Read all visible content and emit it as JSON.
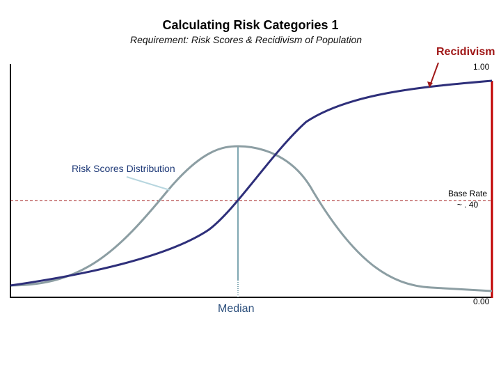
{
  "title": "Calculating Risk Categories 1",
  "subtitle": "Requirement: Risk Scores & Recidivism of Population",
  "recidivism_label": "Recidivism",
  "axis_top_value": "1.00",
  "axis_bottom_value": "0.00",
  "distribution_label": "Risk Scores Distribution",
  "base_rate_line1": "Base Rate",
  "base_rate_line2": "~ . 40",
  "median_label": "Median",
  "colors": {
    "recidivism_curve": "#2e2f7a",
    "distribution_curve": "#8c9ea3",
    "base_rate_line": "#a01818",
    "right_axis": "#c00000",
    "recidivism_label": "#a01818",
    "median_line": "#7fa7b2"
  }
}
